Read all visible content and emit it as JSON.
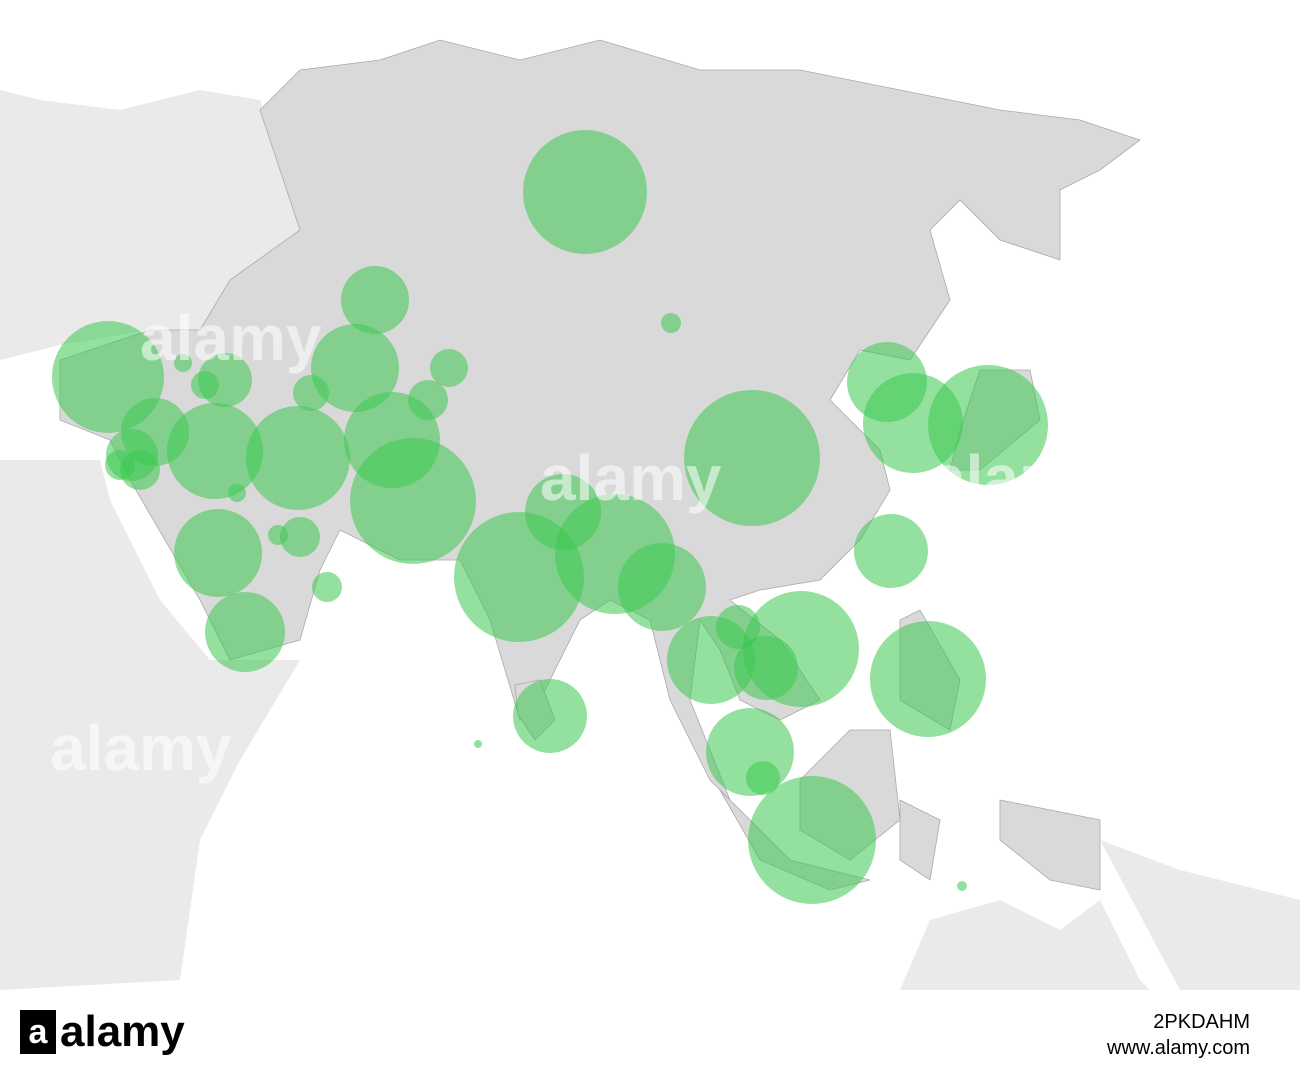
{
  "map": {
    "watermark": "alamy"
  },
  "footer": {
    "logo_mark": "a",
    "logo": "alamy",
    "image_id": "2PKDAHM",
    "url": "www.alamy.com"
  }
}
